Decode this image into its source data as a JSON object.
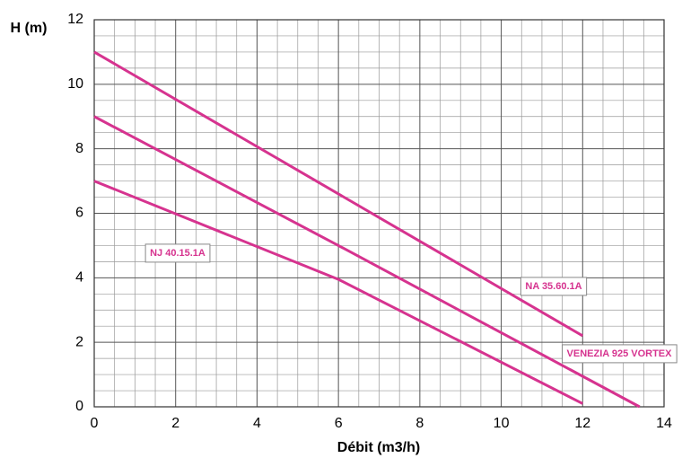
{
  "chart_data": {
    "type": "line",
    "xlabel": "Débit (m3/h)",
    "ylabel": "H (m)",
    "xlim": [
      0,
      14
    ],
    "ylim": [
      0,
      12
    ],
    "xticks": [
      0,
      2,
      4,
      6,
      8,
      10,
      12,
      14
    ],
    "yticks": [
      0,
      2,
      4,
      6,
      8,
      10,
      12
    ],
    "grid": true,
    "series": [
      {
        "name": "NA 35.60.1A",
        "color": "#d6338f",
        "x": [
          0,
          6,
          12
        ],
        "values": [
          11,
          6.6,
          2.2
        ]
      },
      {
        "name": "VENEZIA 925 VORTEX",
        "color": "#d6338f",
        "x": [
          0,
          6,
          13.4
        ],
        "values": [
          9,
          5,
          0
        ]
      },
      {
        "name": "NJ 40.15.1A",
        "color": "#d6338f",
        "x": [
          0,
          6,
          12
        ],
        "values": [
          7,
          3.95,
          0.1
        ]
      }
    ]
  }
}
